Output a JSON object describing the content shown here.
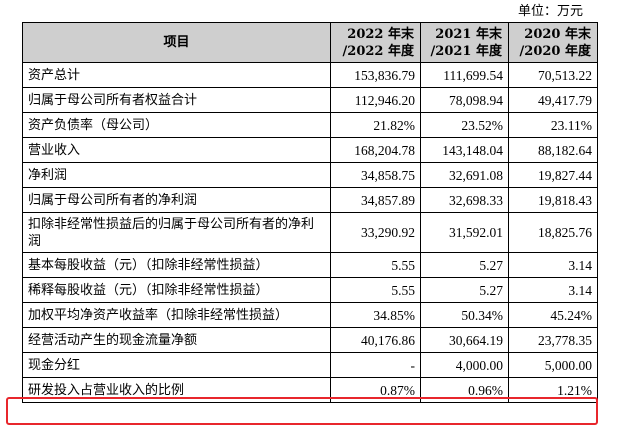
{
  "unit_label": "单位：万元",
  "table": {
    "headers": [
      "项目",
      "2022 年末\n/2022 年度",
      "2021 年末\n/2021 年度",
      "2020 年末\n/2020 年度"
    ],
    "rows": [
      {
        "label": "资产总计",
        "v2022": "153,836.79",
        "v2021": "111,699.54",
        "v2020": "70,513.22"
      },
      {
        "label": "归属于母公司所有者权益合计",
        "v2022": "112,946.20",
        "v2021": "78,098.94",
        "v2020": "49,417.79"
      },
      {
        "label": "资产负债率（母公司）",
        "v2022": "21.82%",
        "v2021": "23.52%",
        "v2020": "23.11%"
      },
      {
        "label": "营业收入",
        "v2022": "168,204.78",
        "v2021": "143,148.04",
        "v2020": "88,182.64"
      },
      {
        "label": "净利润",
        "v2022": "34,858.75",
        "v2021": "32,691.08",
        "v2020": "19,827.44"
      },
      {
        "label": "归属于母公司所有者的净利润",
        "v2022": "34,857.89",
        "v2021": "32,698.33",
        "v2020": "19,818.43"
      },
      {
        "label": "扣除非经常性损益后的归属于母公司所有者的净利润",
        "v2022": "33,290.92",
        "v2021": "31,592.01",
        "v2020": "18,825.76"
      },
      {
        "label": "基本每股收益（元）（扣除非经常性损益）",
        "v2022": "5.55",
        "v2021": "5.27",
        "v2020": "3.14"
      },
      {
        "label": "稀释每股收益（元）（扣除非经常性损益）",
        "v2022": "5.55",
        "v2021": "5.27",
        "v2020": "3.14"
      },
      {
        "label": "加权平均净资产收益率（扣除非经常性损益）",
        "v2022": "34.85%",
        "v2021": "50.34%",
        "v2020": "45.24%"
      },
      {
        "label": "经营活动产生的现金流量净额",
        "v2022": "40,176.86",
        "v2021": "30,664.19",
        "v2020": "23,778.35"
      },
      {
        "label": "现金分红",
        "v2022": "-",
        "v2021": "4,000.00",
        "v2020": "5,000.00"
      },
      {
        "label": "研发投入占营业收入的比例",
        "v2022": "0.87%",
        "v2021": "0.96%",
        "v2020": "1.21%"
      }
    ]
  },
  "colors": {
    "header_bg": "#cfcfcf",
    "highlight_border": "#e8262c"
  }
}
